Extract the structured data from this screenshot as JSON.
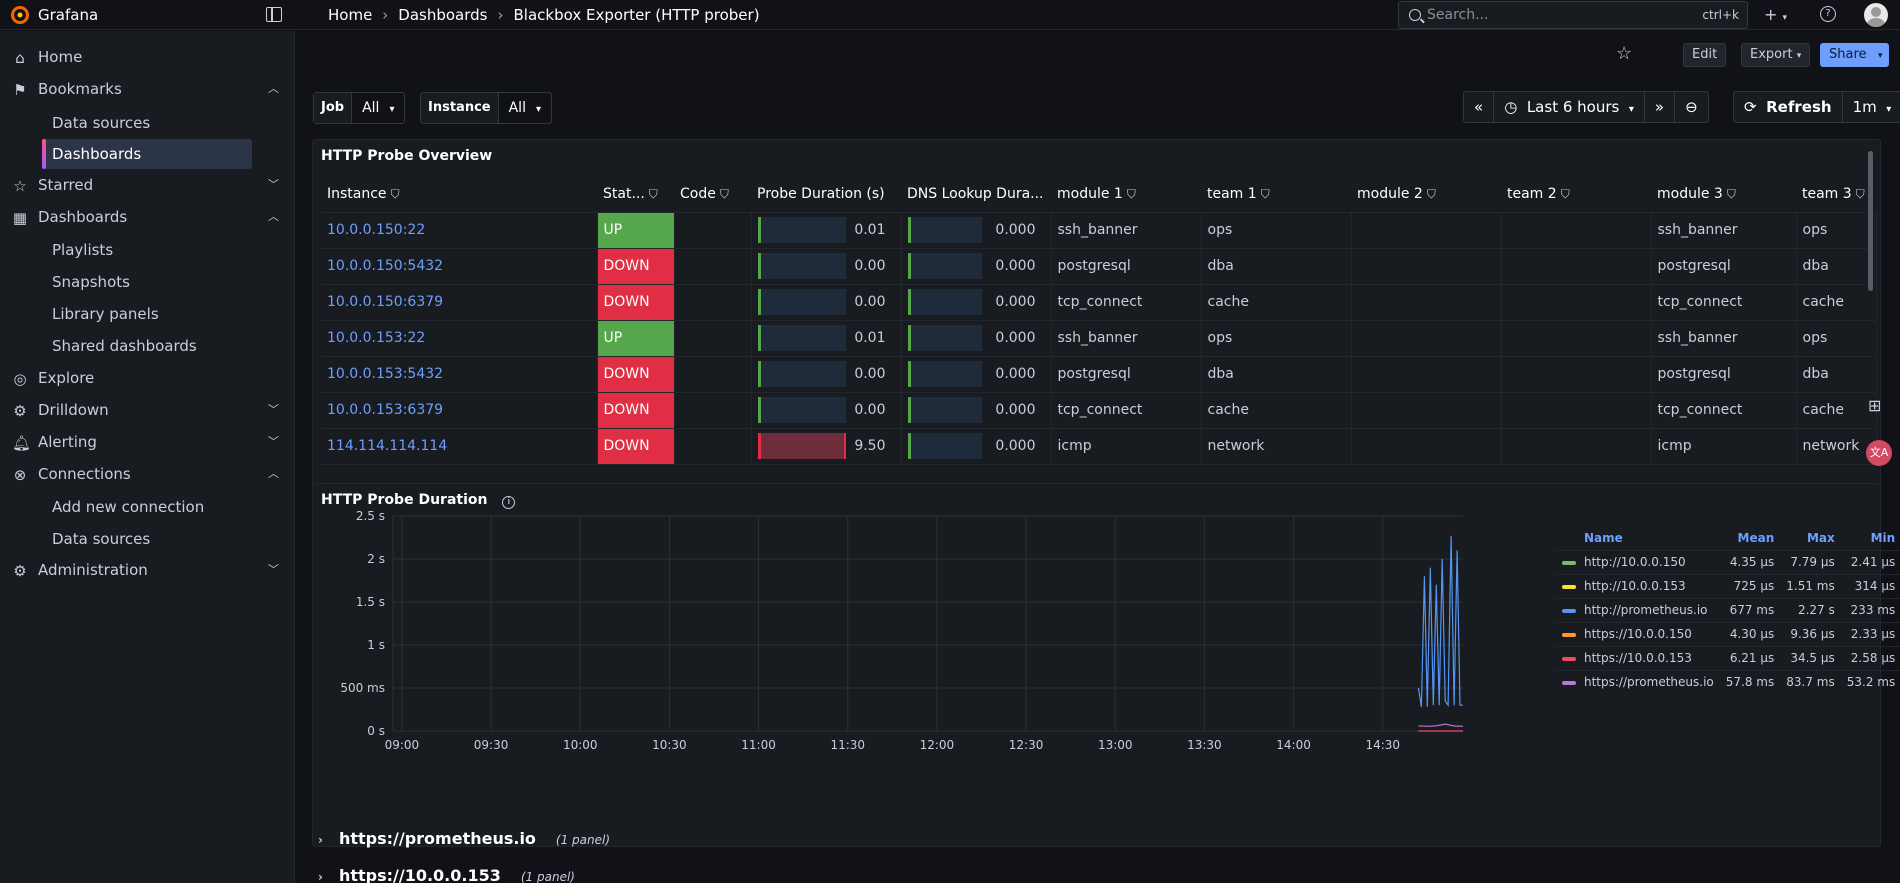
{
  "app": {
    "brand": "Grafana"
  },
  "breadcrumb": [
    "Home",
    "Dashboards",
    "Blackbox Exporter (HTTP prober)"
  ],
  "search": {
    "placeholder": "Search...",
    "shortcut": "ctrl+k"
  },
  "sidebar": {
    "items": [
      {
        "label": "Home",
        "icon": "home-icon"
      },
      {
        "label": "Bookmarks",
        "icon": "bookmark-icon"
      },
      {
        "label": "Data sources"
      },
      {
        "label": "Dashboards",
        "active": true
      },
      {
        "label": "Starred",
        "icon": "star-icon"
      },
      {
        "label": "Dashboards",
        "icon": "apps-icon"
      },
      {
        "label": "Playlists"
      },
      {
        "label": "Snapshots"
      },
      {
        "label": "Library panels"
      },
      {
        "label": "Shared dashboards"
      },
      {
        "label": "Explore",
        "icon": "compass-icon"
      },
      {
        "label": "Drilldown",
        "icon": "drilldown-icon"
      },
      {
        "label": "Alerting",
        "icon": "bell-icon"
      },
      {
        "label": "Connections",
        "icon": "connections-icon"
      },
      {
        "label": "Add new connection"
      },
      {
        "label": "Data sources"
      },
      {
        "label": "Administration",
        "icon": "gear-icon"
      }
    ]
  },
  "toolbar": {
    "edit": "Edit",
    "export": "Export",
    "share": "Share"
  },
  "variables": {
    "job": {
      "label": "Job",
      "value": "All"
    },
    "instance": {
      "label": "Instance",
      "value": "All"
    }
  },
  "time": {
    "range": "Last 6 hours",
    "refresh": "Refresh",
    "interval": "1m"
  },
  "overview": {
    "title": "HTTP Probe Overview",
    "headers": [
      "Instance",
      "Stat...",
      "Code",
      "Probe Duration (s)",
      "DNS Lookup Dura...",
      "module 1",
      "team 1",
      "module 2",
      "team 2",
      "module 3",
      "team 3"
    ],
    "rows": [
      {
        "instance": "10.0.0.150:22",
        "status": "UP",
        "code": "",
        "probe": "0.01",
        "probe_level": 0.001,
        "dns": "0.000",
        "module1": "ssh_banner",
        "team1": "ops",
        "module2": "",
        "team2": "",
        "module3": "ssh_banner",
        "team3": "ops"
      },
      {
        "instance": "10.0.0.150:5432",
        "status": "DOWN",
        "code": "",
        "probe": "0.00",
        "probe_level": 0,
        "dns": "0.000",
        "module1": "postgresql",
        "team1": "dba",
        "module2": "",
        "team2": "",
        "module3": "postgresql",
        "team3": "dba"
      },
      {
        "instance": "10.0.0.150:6379",
        "status": "DOWN",
        "code": "",
        "probe": "0.00",
        "probe_level": 0,
        "dns": "0.000",
        "module1": "tcp_connect",
        "team1": "cache",
        "module2": "",
        "team2": "",
        "module3": "tcp_connect",
        "team3": "cache"
      },
      {
        "instance": "10.0.0.153:22",
        "status": "UP",
        "code": "",
        "probe": "0.01",
        "probe_level": 0.001,
        "dns": "0.000",
        "module1": "ssh_banner",
        "team1": "ops",
        "module2": "",
        "team2": "",
        "module3": "ssh_banner",
        "team3": "ops"
      },
      {
        "instance": "10.0.0.153:5432",
        "status": "DOWN",
        "code": "",
        "probe": "0.00",
        "probe_level": 0,
        "dns": "0.000",
        "module1": "postgresql",
        "team1": "dba",
        "module2": "",
        "team2": "",
        "module3": "postgresql",
        "team3": "dba"
      },
      {
        "instance": "10.0.0.153:6379",
        "status": "DOWN",
        "code": "",
        "probe": "0.00",
        "probe_level": 0,
        "dns": "0.000",
        "module1": "tcp_connect",
        "team1": "cache",
        "module2": "",
        "team2": "",
        "module3": "tcp_connect",
        "team3": "cache"
      },
      {
        "instance": "114.114.114.114",
        "status": "DOWN",
        "code": "",
        "probe": "9.50",
        "probe_level": 1,
        "dns": "0.000",
        "module1": "icmp",
        "team1": "network",
        "module2": "",
        "team2": "",
        "module3": "icmp",
        "team3": "network"
      }
    ]
  },
  "duration": {
    "title": "HTTP Probe Duration",
    "legend_headers": [
      "Name",
      "Mean",
      "Max",
      "Min"
    ],
    "legend": [
      {
        "name": "http://10.0.0.150",
        "mean": "4.35 µs",
        "max": "7.79 µs",
        "min": "2.41 µs",
        "color": "#73bf69"
      },
      {
        "name": "http://10.0.0.153",
        "mean": "725 µs",
        "max": "1.51 ms",
        "min": "314 µs",
        "color": "#fade2a"
      },
      {
        "name": "http://prometheus.io",
        "mean": "677 ms",
        "max": "2.27 s",
        "min": "233 ms",
        "color": "#5794f2"
      },
      {
        "name": "https://10.0.0.150",
        "mean": "4.30 µs",
        "max": "9.36 µs",
        "min": "2.33 µs",
        "color": "#ff9830"
      },
      {
        "name": "https://10.0.0.153",
        "mean": "6.21 µs",
        "max": "34.5 µs",
        "min": "2.58 µs",
        "color": "#f2495c"
      },
      {
        "name": "https://prometheus.io",
        "mean": "57.8 ms",
        "max": "83.7 ms",
        "min": "53.2 ms",
        "color": "#b877d9"
      }
    ]
  },
  "chart_data": {
    "type": "line",
    "title": "HTTP Probe Duration",
    "y_ticks": [
      "0 s",
      "500 ms",
      "1 s",
      "1.5 s",
      "2 s",
      "2.5 s"
    ],
    "ylim": [
      0,
      2.5
    ],
    "x_ticks": [
      "09:00",
      "09:30",
      "10:00",
      "10:30",
      "11:00",
      "11:30",
      "12:00",
      "12:30",
      "13:00",
      "13:30",
      "14:00",
      "14:30"
    ],
    "xlim": [
      "08:57",
      "14:57"
    ],
    "grid": true,
    "legend_position": "right",
    "series": [
      {
        "name": "http://prometheus.io",
        "color": "#5794f2",
        "x": [
          "14:42",
          "14:43",
          "14:44",
          "14:45",
          "14:46",
          "14:47",
          "14:48",
          "14:49",
          "14:50",
          "14:51",
          "14:52",
          "14:53",
          "14:54",
          "14:55",
          "14:56",
          "14:57"
        ],
        "y": [
          0.5,
          0.28,
          1.8,
          0.28,
          1.9,
          0.3,
          1.7,
          0.3,
          2.0,
          0.35,
          0.3,
          2.27,
          0.3,
          2.1,
          0.3,
          0.3
        ]
      },
      {
        "name": "https://prometheus.io",
        "color": "#b877d9",
        "x": [
          "14:42",
          "14:45",
          "14:48",
          "14:51",
          "14:54",
          "14:57"
        ],
        "y": [
          0.06,
          0.055,
          0.06,
          0.08,
          0.058,
          0.055
        ]
      },
      {
        "name": "https://10.0.0.153",
        "color": "#f2495c",
        "x": [
          "14:42",
          "14:57"
        ],
        "y": [
          0.0,
          0.0
        ]
      }
    ]
  },
  "rows_collapsed": [
    {
      "title": "https://prometheus.io",
      "count": "(1 panel)"
    },
    {
      "title": "https://10.0.0.153",
      "count": "(1 panel)"
    }
  ]
}
